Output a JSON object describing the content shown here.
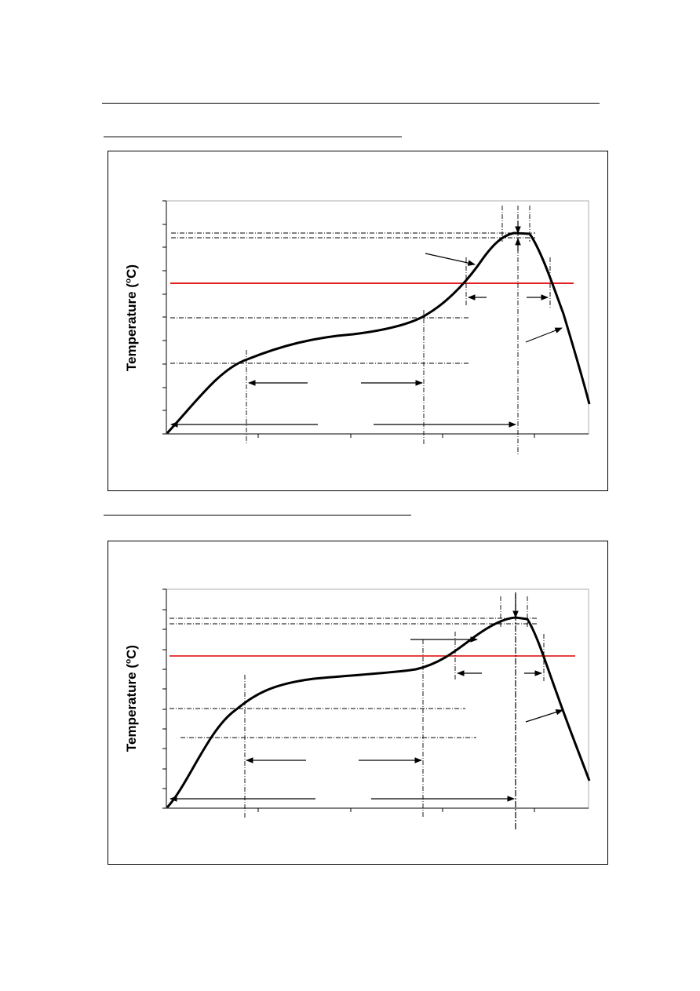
{
  "page": {
    "header_rule": true
  },
  "figures": [
    {
      "ylabel_prefix": "Temperature (",
      "ylabel_sup": "o",
      "ylabel_suffix": "C)"
    },
    {
      "ylabel_prefix": "Temperature (",
      "ylabel_sup": "o",
      "ylabel_suffix": "C)"
    }
  ],
  "colors": {
    "curve": "#000000",
    "reference_line": "#e00000",
    "guides": "#000000"
  },
  "icons": [
    "arrow-icon"
  ]
}
